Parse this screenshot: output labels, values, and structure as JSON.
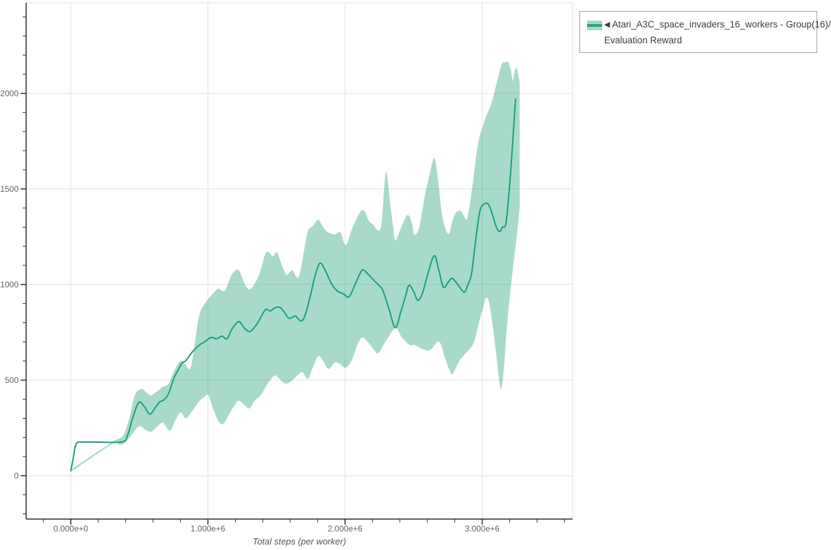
{
  "page": {
    "background": "#ffffff"
  },
  "legend": {
    "icon": "◀",
    "series_name": "Atari_A3C_space_invaders_16_workers - Group(16)/",
    "series_name_line2": "Evaluation Reward",
    "swatch_band_color": "#a7d8c7",
    "swatch_line_color": "#2aa082",
    "border_color": "#a3a3a3",
    "text_color": "#3d3d3d"
  },
  "chart_data": {
    "type": "line",
    "title": "",
    "xlabel": "Total steps (per worker)",
    "ylabel": "",
    "grid": true,
    "legend_position": "top-right-outside",
    "x_unit": "steps (millions)",
    "xlim_e6": [
      -0.326,
      3.659
    ],
    "ylim": [
      -227,
      2474
    ],
    "x_ticks": [
      {
        "v": 0,
        "label": "0.000e+0"
      },
      {
        "v": 1,
        "label": "1.000e+6"
      },
      {
        "v": 2,
        "label": "2.000e+6"
      },
      {
        "v": 3,
        "label": "3.000e+6"
      }
    ],
    "x_minor_step_e6": 0.2,
    "y_ticks": [
      {
        "v": 0,
        "label": "0"
      },
      {
        "v": 500,
        "label": "500"
      },
      {
        "v": 1000,
        "label": "1000"
      },
      {
        "v": 1500,
        "label": "1500"
      },
      {
        "v": 2000,
        "label": "2000"
      }
    ],
    "y_minor_step": 100,
    "colors": {
      "line": "#1b9e77",
      "band": "rgba(27,158,119,0.38)",
      "grid": "#e2e2e2",
      "axis": "#2b2b2b",
      "tick_label": "#606060"
    },
    "series": [
      {
        "name": "Atari_A3C_space_invaders_16_workers - Group(16)/Evaluation Reward",
        "color": "#1b9e77",
        "band_color": "rgba(27,158,119,0.38)",
        "line": [
          [
            0.0,
            25
          ],
          [
            0.015,
            80
          ],
          [
            0.03,
            145
          ],
          [
            0.045,
            172
          ],
          [
            0.075,
            176
          ],
          [
            0.18,
            176
          ],
          [
            0.371,
            176
          ],
          [
            0.411,
            205
          ],
          [
            0.446,
            290
          ],
          [
            0.476,
            355
          ],
          [
            0.501,
            385
          ],
          [
            0.536,
            362
          ],
          [
            0.576,
            322
          ],
          [
            0.617,
            357
          ],
          [
            0.647,
            385
          ],
          [
            0.677,
            396
          ],
          [
            0.712,
            428
          ],
          [
            0.752,
            511
          ],
          [
            0.787,
            558
          ],
          [
            0.812,
            590
          ],
          [
            0.837,
            601
          ],
          [
            0.887,
            648
          ],
          [
            0.937,
            683
          ],
          [
            0.972,
            698
          ],
          [
            1.023,
            723
          ],
          [
            1.063,
            716
          ],
          [
            1.103,
            730
          ],
          [
            1.138,
            716
          ],
          [
            1.178,
            770
          ],
          [
            1.223,
            806
          ],
          [
            1.248,
            790
          ],
          [
            1.278,
            763
          ],
          [
            1.313,
            756
          ],
          [
            1.363,
            800
          ],
          [
            1.398,
            845
          ],
          [
            1.424,
            871
          ],
          [
            1.454,
            862
          ],
          [
            1.489,
            878
          ],
          [
            1.524,
            881
          ],
          [
            1.554,
            858
          ],
          [
            1.589,
            824
          ],
          [
            1.619,
            830
          ],
          [
            1.639,
            835
          ],
          [
            1.679,
            809
          ],
          [
            1.709,
            840
          ],
          [
            1.75,
            950
          ],
          [
            1.779,
            1040
          ],
          [
            1.815,
            1111
          ],
          [
            1.85,
            1082
          ],
          [
            1.9,
            1005
          ],
          [
            1.94,
            968
          ],
          [
            1.99,
            950
          ],
          [
            2.03,
            937
          ],
          [
            2.08,
            1012
          ],
          [
            2.125,
            1075
          ],
          [
            2.165,
            1056
          ],
          [
            2.206,
            1025
          ],
          [
            2.241,
            1000
          ],
          [
            2.276,
            968
          ],
          [
            2.321,
            870
          ],
          [
            2.366,
            774
          ],
          [
            2.406,
            855
          ],
          [
            2.441,
            940
          ],
          [
            2.466,
            996
          ],
          [
            2.501,
            962
          ],
          [
            2.531,
            917
          ],
          [
            2.566,
            958
          ],
          [
            2.612,
            1078
          ],
          [
            2.652,
            1151
          ],
          [
            2.682,
            1080
          ],
          [
            2.717,
            986
          ],
          [
            2.752,
            1012
          ],
          [
            2.782,
            1032
          ],
          [
            2.822,
            1000
          ],
          [
            2.867,
            960
          ],
          [
            2.892,
            992
          ],
          [
            2.922,
            1057
          ],
          [
            2.952,
            1230
          ],
          [
            2.982,
            1380
          ],
          [
            3.008,
            1418
          ],
          [
            3.043,
            1421
          ],
          [
            3.073,
            1370
          ],
          [
            3.103,
            1300
          ],
          [
            3.128,
            1277
          ],
          [
            3.148,
            1300
          ],
          [
            3.173,
            1320
          ],
          [
            3.198,
            1500
          ],
          [
            3.223,
            1750
          ],
          [
            3.243,
            1970
          ]
        ],
        "band_upper": [
          [
            0.0,
            30
          ],
          [
            0.311,
            180
          ],
          [
            0.346,
            192
          ],
          [
            0.386,
            215
          ],
          [
            0.426,
            300
          ],
          [
            0.466,
            420
          ],
          [
            0.501,
            450
          ],
          [
            0.526,
            452
          ],
          [
            0.556,
            432
          ],
          [
            0.586,
            420
          ],
          [
            0.627,
            440
          ],
          [
            0.672,
            465
          ],
          [
            0.712,
            480
          ],
          [
            0.747,
            540
          ],
          [
            0.777,
            580
          ],
          [
            0.802,
            600
          ],
          [
            0.837,
            580
          ],
          [
            0.872,
            562
          ],
          [
            0.902,
            680
          ],
          [
            0.937,
            841
          ],
          [
            0.977,
            900
          ],
          [
            1.023,
            942
          ],
          [
            1.073,
            978
          ],
          [
            1.123,
            968
          ],
          [
            1.173,
            1050
          ],
          [
            1.223,
            1076
          ],
          [
            1.273,
            996
          ],
          [
            1.313,
            978
          ],
          [
            1.373,
            1050
          ],
          [
            1.424,
            1168
          ],
          [
            1.474,
            1148
          ],
          [
            1.504,
            1170
          ],
          [
            1.539,
            1100
          ],
          [
            1.574,
            1050
          ],
          [
            1.614,
            1075
          ],
          [
            1.664,
            1044
          ],
          [
            1.724,
            1266
          ],
          [
            1.764,
            1305
          ],
          [
            1.805,
            1338
          ],
          [
            1.84,
            1300
          ],
          [
            1.875,
            1273
          ],
          [
            1.925,
            1262
          ],
          [
            1.965,
            1273
          ],
          [
            2.005,
            1205
          ],
          [
            2.05,
            1290
          ],
          [
            2.105,
            1374
          ],
          [
            2.14,
            1385
          ],
          [
            2.175,
            1331
          ],
          [
            2.206,
            1313
          ],
          [
            2.241,
            1282
          ],
          [
            2.266,
            1320
          ],
          [
            2.291,
            1560
          ],
          [
            2.306,
            1575
          ],
          [
            2.326,
            1440
          ],
          [
            2.351,
            1300
          ],
          [
            2.366,
            1230
          ],
          [
            2.396,
            1275
          ],
          [
            2.441,
            1350
          ],
          [
            2.466,
            1360
          ],
          [
            2.491,
            1310
          ],
          [
            2.506,
            1259
          ],
          [
            2.541,
            1300
          ],
          [
            2.581,
            1460
          ],
          [
            2.612,
            1560
          ],
          [
            2.652,
            1662
          ],
          [
            2.682,
            1520
          ],
          [
            2.702,
            1390
          ],
          [
            2.727,
            1302
          ],
          [
            2.757,
            1266
          ],
          [
            2.782,
            1330
          ],
          [
            2.807,
            1374
          ],
          [
            2.842,
            1385
          ],
          [
            2.872,
            1352
          ],
          [
            2.892,
            1349
          ],
          [
            2.927,
            1507
          ],
          [
            2.952,
            1651
          ],
          [
            2.977,
            1760
          ],
          [
            3.003,
            1824
          ],
          [
            3.028,
            1878
          ],
          [
            3.068,
            1950
          ],
          [
            3.113,
            2076
          ],
          [
            3.143,
            2155
          ],
          [
            3.168,
            2162
          ],
          [
            3.188,
            2165
          ],
          [
            3.208,
            2122
          ],
          [
            3.223,
            2068
          ],
          [
            3.238,
            2119
          ],
          [
            3.253,
            2130
          ],
          [
            3.273,
            2058
          ]
        ],
        "band_lower": [
          [
            0.0,
            20
          ],
          [
            0.311,
            170
          ],
          [
            0.346,
            162
          ],
          [
            0.386,
            168
          ],
          [
            0.436,
            205
          ],
          [
            0.471,
            240
          ],
          [
            0.501,
            259
          ],
          [
            0.546,
            240
          ],
          [
            0.586,
            230
          ],
          [
            0.627,
            255
          ],
          [
            0.672,
            277
          ],
          [
            0.722,
            234
          ],
          [
            0.762,
            290
          ],
          [
            0.802,
            331
          ],
          [
            0.837,
            300
          ],
          [
            0.877,
            330
          ],
          [
            0.937,
            390
          ],
          [
            0.972,
            410
          ],
          [
            1.003,
            421
          ],
          [
            1.038,
            350
          ],
          [
            1.078,
            284
          ],
          [
            1.113,
            272
          ],
          [
            1.153,
            320
          ],
          [
            1.188,
            360
          ],
          [
            1.223,
            392
          ],
          [
            1.263,
            372
          ],
          [
            1.303,
            352
          ],
          [
            1.338,
            390
          ],
          [
            1.388,
            424
          ],
          [
            1.439,
            485
          ],
          [
            1.489,
            524
          ],
          [
            1.529,
            500
          ],
          [
            1.564,
            482
          ],
          [
            1.604,
            492
          ],
          [
            1.649,
            522
          ],
          [
            1.689,
            542
          ],
          [
            1.729,
            505
          ],
          [
            1.764,
            565
          ],
          [
            1.805,
            625
          ],
          [
            1.84,
            600
          ],
          [
            1.88,
            558
          ],
          [
            1.925,
            592
          ],
          [
            1.965,
            582
          ],
          [
            2.005,
            565
          ],
          [
            2.05,
            605
          ],
          [
            2.09,
            685
          ],
          [
            2.125,
            722
          ],
          [
            2.165,
            700
          ],
          [
            2.206,
            662
          ],
          [
            2.241,
            640
          ],
          [
            2.281,
            685
          ],
          [
            2.316,
            725
          ],
          [
            2.351,
            762
          ],
          [
            2.376,
            770
          ],
          [
            2.406,
            732
          ],
          [
            2.441,
            702
          ],
          [
            2.476,
            682
          ],
          [
            2.506,
            684
          ],
          [
            2.541,
            670
          ],
          [
            2.576,
            660
          ],
          [
            2.612,
            655
          ],
          [
            2.642,
            672
          ],
          [
            2.672,
            700
          ],
          [
            2.697,
            690
          ],
          [
            2.727,
            620
          ],
          [
            2.757,
            560
          ],
          [
            2.782,
            530
          ],
          [
            2.807,
            562
          ],
          [
            2.832,
            600
          ],
          [
            2.857,
            622
          ],
          [
            2.882,
            642
          ],
          [
            2.907,
            662
          ],
          [
            2.942,
            702
          ],
          [
            2.977,
            802
          ],
          [
            3.008,
            882
          ],
          [
            3.028,
            930
          ],
          [
            3.053,
            898
          ],
          [
            3.083,
            748
          ],
          [
            3.108,
            600
          ],
          [
            3.133,
            457
          ],
          [
            3.153,
            525
          ],
          [
            3.178,
            755
          ],
          [
            3.203,
            952
          ],
          [
            3.228,
            1105
          ],
          [
            3.253,
            1260
          ],
          [
            3.273,
            1400
          ]
        ]
      }
    ]
  }
}
